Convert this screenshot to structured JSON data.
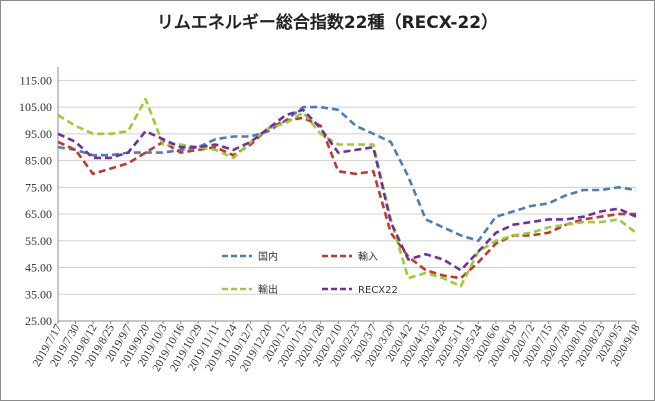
{
  "chart_data": {
    "type": "line",
    "title": "リムエネルギー総合指数22種（RECX-22）",
    "ylim": [
      25,
      120
    ],
    "yticks": [
      "25.00",
      "35.00",
      "45.00",
      "55.00",
      "65.00",
      "75.00",
      "85.00",
      "95.00",
      "105.00",
      "115.00"
    ],
    "grid": true,
    "x": [
      "2019/7/17",
      "2019/7/30",
      "2019/8/12",
      "2019/8/25",
      "2019/9/7",
      "2019/9/20",
      "2019/10/3",
      "2019/10/16",
      "2019/10/29",
      "2019/11/11",
      "2019/11/24",
      "2019/12/7",
      "2019/12/20",
      "2020/1/2",
      "2020/1/15",
      "2020/1/28",
      "2020/2/10",
      "2020/2/23",
      "2020/3/7",
      "2020/3/20",
      "2020/4/2",
      "2020/4/15",
      "2020/4/28",
      "2020/5/11",
      "2020/5/24",
      "2020/6/6",
      "2020/6/19",
      "2020/7/2",
      "2020/7/15",
      "2020/7/28",
      "2020/8/10",
      "2020/8/23",
      "2020/9/5",
      "2020/9/18"
    ],
    "series": [
      {
        "name": "国内",
        "color": "#4a7ebb",
        "values": [
          90,
          89,
          87,
          87,
          88,
          88,
          88,
          89,
          90,
          93,
          94,
          94,
          96,
          100,
          105,
          105,
          104,
          98,
          95,
          92,
          79,
          63,
          60,
          57,
          55,
          64,
          66,
          68,
          69,
          72,
          74,
          74,
          75,
          74
        ]
      },
      {
        "name": "輸入",
        "color": "#c0392b",
        "values": [
          92,
          89,
          80,
          82,
          84,
          88,
          92,
          88,
          89,
          90,
          87,
          91,
          97,
          100,
          101,
          98,
          81,
          80,
          81,
          58,
          49,
          44,
          42,
          41,
          47,
          54,
          57,
          57,
          58,
          61,
          63,
          64,
          65,
          65
        ]
      },
      {
        "name": "輸出",
        "color": "#9acd32",
        "values": [
          102,
          98,
          95,
          95,
          96,
          108,
          91,
          91,
          90,
          89,
          86,
          92,
          97,
          99,
          103,
          95,
          91,
          91,
          91,
          63,
          41,
          43,
          41,
          38,
          51,
          55,
          57,
          58,
          60,
          61,
          62,
          62,
          63,
          58
        ]
      },
      {
        "name": "RECX22",
        "color": "#7030a0",
        "values": [
          95,
          92,
          86,
          86,
          88,
          96,
          93,
          90,
          90,
          91,
          89,
          92,
          97,
          102,
          104,
          97,
          88,
          89,
          90,
          62,
          48,
          50,
          48,
          44,
          51,
          58,
          61,
          62,
          63,
          63,
          64,
          66,
          67,
          64
        ]
      }
    ]
  }
}
